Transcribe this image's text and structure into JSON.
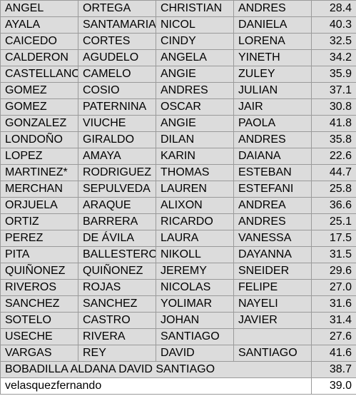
{
  "rows": [
    [
      "ANGEL",
      "ORTEGA",
      "CHRISTIAN",
      "ANDRES",
      "28.4"
    ],
    [
      "AYALA",
      "SANTAMARIA",
      "NICOL",
      "DANIELA",
      "40.3"
    ],
    [
      "CAICEDO",
      "CORTES",
      "CINDY",
      "LORENA",
      "32.5"
    ],
    [
      "CALDERON",
      "AGUDELO",
      "ANGELA",
      "YINETH",
      "34.2"
    ],
    [
      "CASTELLANOS",
      "CAMELO",
      "ANGIE",
      "ZULEY",
      "35.9"
    ],
    [
      "GOMEZ",
      "COSIO",
      "ANDRES",
      "JULIAN",
      "37.1"
    ],
    [
      "GOMEZ",
      "PATERNINA",
      "OSCAR",
      "JAIR",
      "30.8"
    ],
    [
      "GONZALEZ",
      "VIUCHE",
      "ANGIE",
      "PAOLA",
      "41.8"
    ],
    [
      "LONDOÑO",
      "GIRALDO",
      "DILAN",
      "ANDRES",
      "35.8"
    ],
    [
      "LOPEZ",
      "AMAYA",
      "KARIN",
      "DAIANA",
      "22.6"
    ],
    [
      "MARTINEZ*",
      "RODRIGUEZ",
      "THOMAS",
      "ESTEBAN",
      "44.7"
    ],
    [
      "MERCHAN",
      "SEPULVEDA",
      "LAUREN",
      "ESTEFANI",
      "25.8"
    ],
    [
      "ORJUELA",
      "ARAQUE",
      "ALIXON",
      "ANDREA",
      "36.6"
    ],
    [
      "ORTIZ",
      "BARRERA",
      "RICARDO",
      "ANDRES",
      "25.1"
    ],
    [
      "PEREZ",
      "DE ÁVILA",
      "LAURA",
      "VANESSA",
      "17.5"
    ],
    [
      "PITA",
      "BALLESTEROS",
      "NIKOLL",
      "DAYANNA",
      "31.5"
    ],
    [
      "QUIÑONEZ",
      "QUIÑONEZ",
      "JEREMY",
      "SNEIDER",
      "29.6"
    ],
    [
      "RIVEROS",
      "ROJAS",
      "NICOLAS",
      "FELIPE",
      "27.0"
    ],
    [
      "SANCHEZ",
      "SANCHEZ",
      "YOLIMAR",
      "NAYELI",
      "31.6"
    ],
    [
      "SOTELO",
      "CASTRO",
      "JOHAN",
      "JAVIER",
      "31.4"
    ],
    [
      "USECHE",
      "RIVERA",
      "SANTIAGO",
      "",
      "27.6"
    ],
    [
      "VARGAS",
      "REY",
      "DAVID",
      "SANTIAGO",
      "41.6"
    ]
  ],
  "merged_rows": [
    {
      "text": "BOBADILLA ALDANA DAVID SANTIAGO",
      "value": "38.7"
    },
    {
      "text": "velasquezfernando",
      "value": "39.0"
    }
  ]
}
